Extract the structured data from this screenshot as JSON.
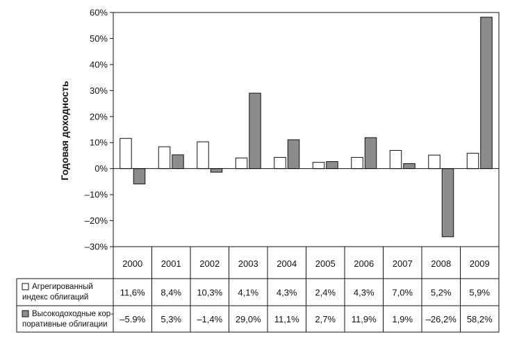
{
  "chart_data": {
    "type": "bar",
    "title": "",
    "xlabel": "",
    "ylabel": "Годовая доходность",
    "ylim": [
      -30,
      60
    ],
    "ytick_step": 10,
    "ytick_labels": [
      "60%",
      "50%",
      "40%",
      "30%",
      "20%",
      "10%",
      "0%",
      "–10%",
      "–20%",
      "–30%"
    ],
    "grid": false,
    "legend_placement": "table-left",
    "categories": [
      "2000",
      "2001",
      "2002",
      "2003",
      "2004",
      "2005",
      "2006",
      "2007",
      "2008",
      "2009"
    ],
    "series": [
      {
        "name_lines": [
          "Агрегированный",
          "индекс облигаций"
        ],
        "color": "#ffffff",
        "values": [
          11.6,
          8.4,
          10.3,
          4.1,
          4.3,
          2.4,
          4.3,
          7.0,
          5.2,
          5.9
        ],
        "labels": [
          "11,6%",
          "8,4%",
          "10,3%",
          "4,1%",
          "4,3%",
          "2,4%",
          "4,3%",
          "7,0%",
          "5,2%",
          "5,9%"
        ]
      },
      {
        "name_lines": [
          "Высокодоходные кор-",
          "поративные облигации"
        ],
        "color": "#8c8c8c",
        "values": [
          -5.9,
          5.3,
          -1.4,
          29.0,
          11.1,
          2.7,
          11.9,
          1.9,
          -26.2,
          58.2
        ],
        "labels": [
          "–5.9%",
          "5,3%",
          "–1,4%",
          "29,0%",
          "11,1%",
          "2,7%",
          "11,9%",
          "1,9%",
          "–26,2%",
          "58,2%"
        ]
      }
    ]
  }
}
